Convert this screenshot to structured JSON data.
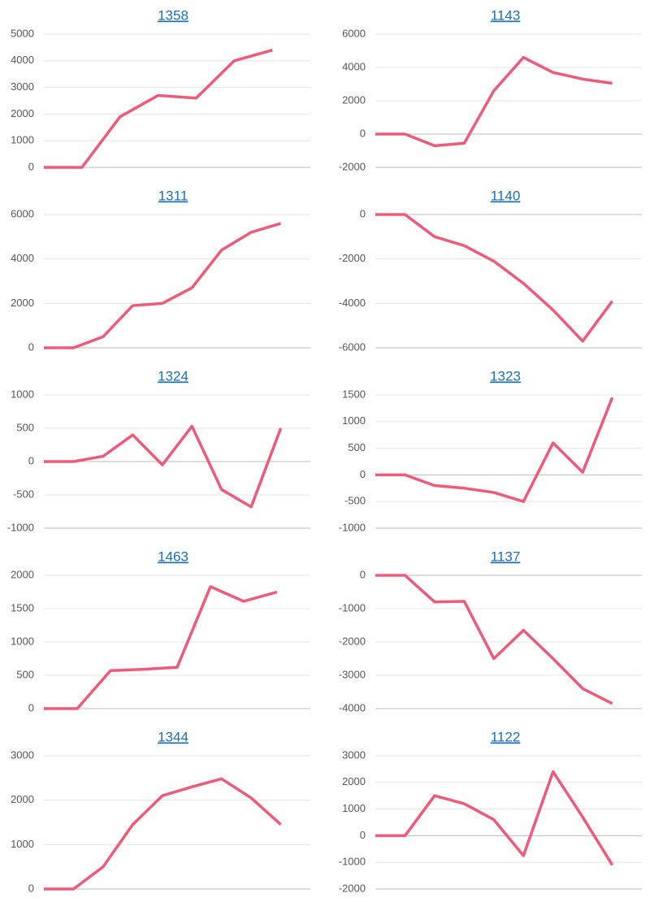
{
  "chart_data": [
    {
      "type": "line",
      "title": "1358",
      "color": "#ef5a78",
      "grid": true,
      "ylim": [
        0,
        5000
      ],
      "yticks": [
        0,
        1000,
        2000,
        3000,
        4000,
        5000
      ],
      "values": [
        0,
        0,
        1900,
        2700,
        2600,
        4000,
        4400
      ]
    },
    {
      "type": "line",
      "title": "1143",
      "color": "#ef5a78",
      "grid": true,
      "ylim": [
        -2000,
        6000
      ],
      "yticks": [
        -2000,
        0,
        2000,
        4000,
        6000
      ],
      "values": [
        0,
        0,
        -700,
        -550,
        2600,
        4600,
        3700,
        3300,
        3050
      ]
    },
    {
      "type": "line",
      "title": "1311",
      "color": "#ef5a78",
      "grid": true,
      "ylim": [
        0,
        6000
      ],
      "yticks": [
        0,
        2000,
        4000,
        6000
      ],
      "values": [
        0,
        0,
        500,
        1900,
        2000,
        2700,
        4400,
        5200,
        5600
      ]
    },
    {
      "type": "line",
      "title": "1140",
      "color": "#ef5a78",
      "grid": true,
      "ylim": [
        -6000,
        0
      ],
      "yticks": [
        -6000,
        -4000,
        -2000,
        0
      ],
      "values": [
        0,
        0,
        -1000,
        -1400,
        -2100,
        -3100,
        -4300,
        -5700,
        -3900
      ]
    },
    {
      "type": "line",
      "title": "1324",
      "color": "#ef5a78",
      "grid": true,
      "ylim": [
        -1000,
        1000
      ],
      "yticks": [
        -1000,
        -500,
        0,
        500,
        1000
      ],
      "values": [
        0,
        0,
        80,
        400,
        -50,
        530,
        -420,
        -680,
        500
      ]
    },
    {
      "type": "line",
      "title": "1323",
      "color": "#ef5a78",
      "grid": true,
      "ylim": [
        -1000,
        1500
      ],
      "yticks": [
        -1000,
        -500,
        0,
        500,
        1000,
        1500
      ],
      "values": [
        0,
        0,
        -200,
        -250,
        -330,
        -500,
        600,
        50,
        1450
      ]
    },
    {
      "type": "line",
      "title": "1463",
      "color": "#ef5a78",
      "grid": true,
      "ylim": [
        0,
        2000
      ],
      "yticks": [
        0,
        500,
        1000,
        1500,
        2000
      ],
      "values": [
        0,
        0,
        570,
        590,
        620,
        1830,
        1610,
        1750
      ]
    },
    {
      "type": "line",
      "title": "1137",
      "color": "#ef5a78",
      "grid": true,
      "ylim": [
        -4000,
        0
      ],
      "yticks": [
        -4000,
        -3000,
        -2000,
        -1000,
        0
      ],
      "values": [
        0,
        0,
        -800,
        -780,
        -2500,
        -1650,
        -2500,
        -3400,
        -3850
      ]
    },
    {
      "type": "line",
      "title": "1344",
      "color": "#ef5a78",
      "grid": true,
      "ylim": [
        0,
        3000
      ],
      "yticks": [
        0,
        1000,
        2000,
        3000
      ],
      "values": [
        0,
        0,
        500,
        1450,
        2100,
        2300,
        2480,
        2050,
        1450
      ]
    },
    {
      "type": "line",
      "title": "1122",
      "color": "#ef5a78",
      "grid": true,
      "ylim": [
        -2000,
        3000
      ],
      "yticks": [
        -2000,
        -1000,
        0,
        1000,
        2000,
        3000
      ],
      "values": [
        0,
        0,
        1500,
        1200,
        600,
        -750,
        2400,
        700,
        -1100
      ]
    }
  ]
}
